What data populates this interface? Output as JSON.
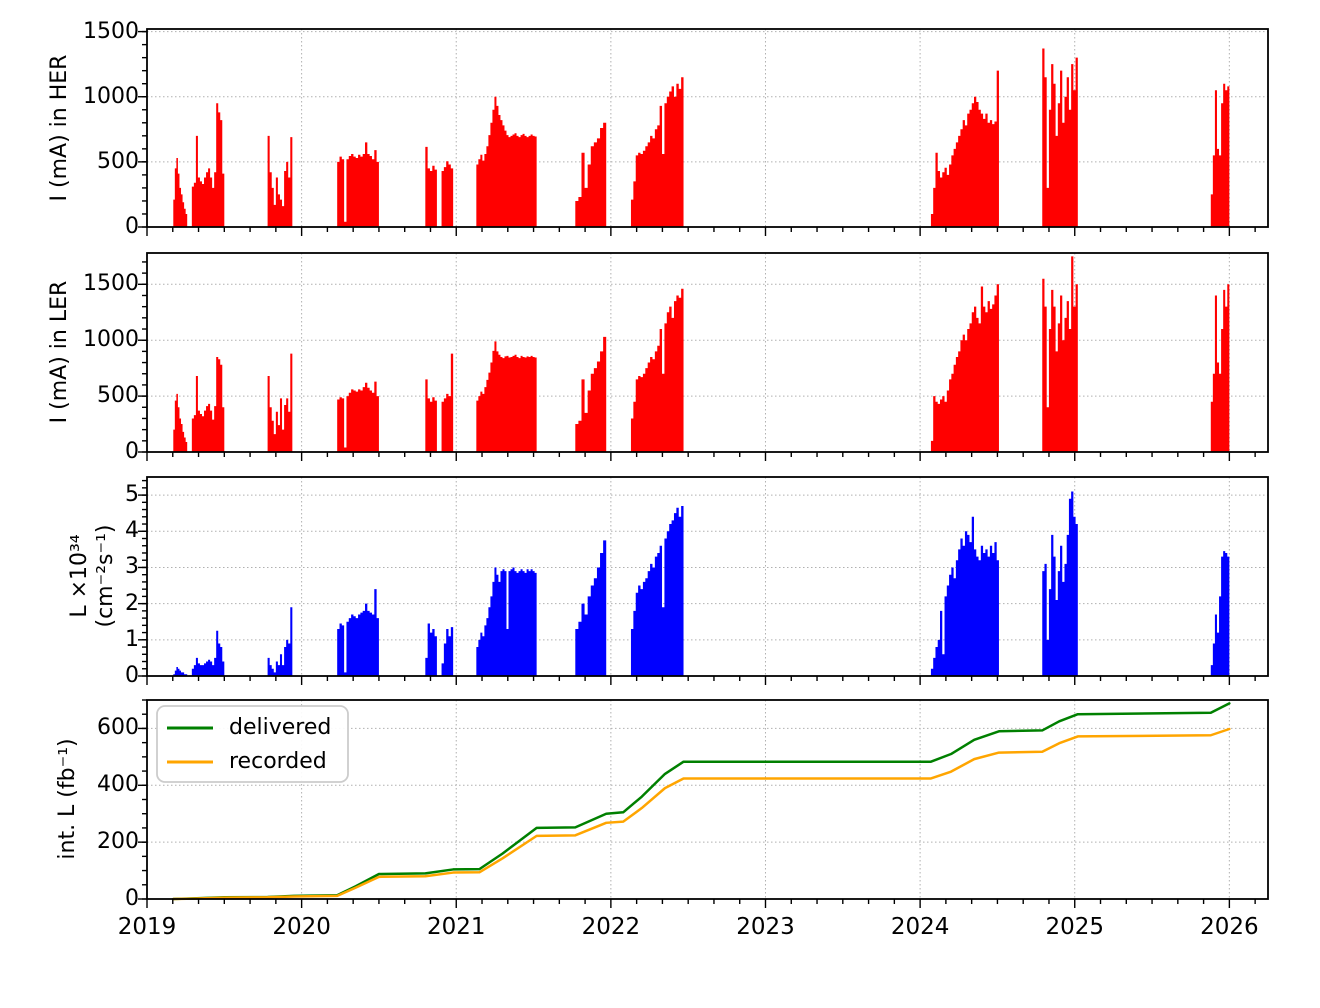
{
  "figure": {
    "background": "#ffffff",
    "grid_color": "#b0b0b0",
    "spine_color": "#000000",
    "x_axis": {
      "xmin": 2019,
      "xmax": 2026.25,
      "tick_years": [
        2019,
        2020,
        2021,
        2022,
        2023,
        2024,
        2025,
        2026
      ],
      "tick_labels": [
        "2019",
        "2020",
        "2021",
        "2022",
        "2023",
        "2024",
        "2025",
        "2026"
      ],
      "minor_step_years": 0.16667
    }
  },
  "chart_data": [
    {
      "type": "bar",
      "name": "her-current",
      "ylabel": "I (mA) in HER",
      "ylim": [
        0,
        1520
      ],
      "yticks": [
        0,
        500,
        1000,
        1500
      ],
      "yminor_step": 100,
      "color": "#ff0000",
      "clusters": [
        {
          "start": 2019.17,
          "end": 2019.26,
          "heights": [
            210,
            450,
            530,
            410,
            300,
            250,
            190,
            140,
            100
          ]
        },
        {
          "start": 2019.29,
          "end": 2019.5,
          "heights": [
            310,
            340,
            700,
            380,
            350,
            330,
            380,
            420,
            450,
            380,
            300,
            420,
            950,
            880,
            820,
            410
          ]
        },
        {
          "start": 2019.78,
          "end": 2019.94,
          "heights": [
            700,
            420,
            300,
            170,
            380,
            250,
            210,
            160,
            430,
            500,
            380,
            690
          ]
        },
        {
          "start": 2020.23,
          "end": 2020.5,
          "heights": [
            500,
            540,
            520,
            40,
            520,
            545,
            560,
            540,
            530,
            555,
            540,
            560,
            650,
            560,
            545,
            520,
            590,
            500
          ]
        },
        {
          "start": 2020.8,
          "end": 2020.98,
          "heights": [
            615,
            450,
            430,
            470,
            440,
            0,
            0,
            430,
            460,
            505,
            480,
            450
          ]
        },
        {
          "start": 2021.13,
          "end": 2021.52,
          "heights": [
            480,
            520,
            555,
            510,
            560,
            620,
            705,
            800,
            900,
            1000,
            930,
            860,
            820,
            780,
            740,
            705,
            690,
            700,
            710,
            720,
            700,
            690,
            705,
            715,
            700,
            690,
            700,
            710,
            700,
            695
          ]
        },
        {
          "start": 2021.77,
          "end": 2021.97,
          "heights": [
            200,
            230,
            570,
            300,
            480,
            620,
            650,
            680,
            760,
            800
          ]
        },
        {
          "start": 2022.13,
          "end": 2022.47,
          "heights": [
            210,
            350,
            550,
            570,
            560,
            585,
            620,
            650,
            700,
            680,
            750,
            780,
            930,
            560,
            950,
            1000,
            1040,
            1080,
            1000,
            1100,
            1060,
            1150
          ]
        },
        {
          "start": 2024.07,
          "end": 2024.51,
          "heights": [
            100,
            300,
            570,
            430,
            380,
            420,
            455,
            400,
            480,
            550,
            600,
            650,
            700,
            750,
            820,
            780,
            870,
            900,
            950,
            1000,
            960,
            900,
            870,
            830,
            870,
            800,
            820,
            790,
            810,
            1200
          ]
        },
        {
          "start": 2024.79,
          "end": 2025.02,
          "heights": [
            1370,
            1150,
            300,
            900,
            1250,
            1100,
            700,
            950,
            1200,
            800,
            1000,
            1150,
            900,
            1250,
            1050,
            1300
          ]
        },
        {
          "start": 2025.88,
          "end": 2026.0,
          "heights": [
            250,
            550,
            1050,
            600,
            550,
            950,
            1100,
            1050,
            1080
          ]
        }
      ]
    },
    {
      "type": "bar",
      "name": "ler-current",
      "ylabel": "I (mA) in LER",
      "ylim": [
        0,
        1780
      ],
      "yticks": [
        0,
        500,
        1000,
        1500
      ],
      "yminor_step": 100,
      "color": "#ff0000",
      "clusters": [
        {
          "start": 2019.17,
          "end": 2019.26,
          "heights": [
            200,
            460,
            520,
            400,
            300,
            250,
            180,
            130,
            90
          ]
        },
        {
          "start": 2019.29,
          "end": 2019.5,
          "heights": [
            300,
            330,
            680,
            370,
            340,
            320,
            370,
            410,
            430,
            370,
            290,
            410,
            850,
            830,
            780,
            400
          ]
        },
        {
          "start": 2019.78,
          "end": 2019.94,
          "heights": [
            680,
            400,
            280,
            160,
            360,
            240,
            480,
            200,
            420,
            480,
            360,
            880
          ]
        },
        {
          "start": 2020.23,
          "end": 2020.5,
          "heights": [
            470,
            490,
            480,
            40,
            500,
            530,
            560,
            550,
            540,
            560,
            550,
            580,
            620,
            575,
            550,
            530,
            630,
            500
          ]
        },
        {
          "start": 2020.8,
          "end": 2020.98,
          "heights": [
            650,
            480,
            450,
            490,
            460,
            0,
            0,
            450,
            480,
            520,
            500,
            880
          ]
        },
        {
          "start": 2021.13,
          "end": 2021.52,
          "heights": [
            460,
            500,
            540,
            520,
            580,
            645,
            710,
            800,
            905,
            990,
            900,
            870,
            850,
            840,
            855,
            860,
            845,
            850,
            860,
            870,
            850,
            840,
            860,
            850,
            845,
            855,
            850,
            860,
            850,
            845
          ]
        },
        {
          "start": 2021.77,
          "end": 2021.97,
          "heights": [
            250,
            280,
            650,
            350,
            550,
            700,
            750,
            810,
            900,
            1030
          ]
        },
        {
          "start": 2022.13,
          "end": 2022.47,
          "heights": [
            300,
            450,
            650,
            680,
            670,
            700,
            750,
            800,
            850,
            830,
            900,
            950,
            1100,
            700,
            1150,
            1250,
            1300,
            1200,
            1350,
            1400,
            1380,
            1460
          ]
        },
        {
          "start": 2024.07,
          "end": 2024.51,
          "heights": [
            100,
            500,
            450,
            430,
            470,
            500,
            450,
            550,
            650,
            700,
            780,
            850,
            900,
            1000,
            1050,
            1000,
            1100,
            1150,
            1250,
            1300,
            1200,
            1150,
            1480,
            1300,
            1250,
            1350,
            1280,
            1320,
            1400,
            1500
          ]
        },
        {
          "start": 2024.79,
          "end": 2025.02,
          "heights": [
            1550,
            1300,
            400,
            1100,
            1450,
            1300,
            900,
            1150,
            1400,
            1000,
            1200,
            1350,
            1100,
            1750,
            1300,
            1500
          ]
        },
        {
          "start": 2025.88,
          "end": 2026.0,
          "heights": [
            450,
            700,
            1400,
            800,
            700,
            1100,
            1450,
            1300,
            1500
          ]
        }
      ]
    },
    {
      "type": "bar",
      "name": "luminosity",
      "ylabel_line1": "L ×10³⁴",
      "ylabel_line2": "(cm⁻²s⁻¹)",
      "ylim": [
        0,
        5.5
      ],
      "yticks": [
        0,
        1,
        2,
        3,
        4,
        5
      ],
      "yminor_step": 0.2,
      "color": "#0000ff",
      "clusters": [
        {
          "start": 2019.17,
          "end": 2019.26,
          "heights": [
            0.05,
            0.15,
            0.25,
            0.2,
            0.15,
            0.1,
            0.1,
            0.05,
            0.05
          ]
        },
        {
          "start": 2019.29,
          "end": 2019.5,
          "heights": [
            0.2,
            0.3,
            0.5,
            0.35,
            0.3,
            0.3,
            0.35,
            0.4,
            0.45,
            0.4,
            0.3,
            0.5,
            1.25,
            0.9,
            0.8,
            0.4
          ]
        },
        {
          "start": 2019.78,
          "end": 2019.94,
          "heights": [
            0.5,
            0.3,
            0.2,
            0.1,
            0.4,
            0.3,
            0.6,
            0.3,
            0.8,
            1.0,
            0.9,
            1.9
          ]
        },
        {
          "start": 2020.23,
          "end": 2020.5,
          "heights": [
            1.3,
            1.45,
            1.4,
            0.1,
            1.5,
            1.6,
            1.7,
            1.65,
            1.6,
            1.7,
            1.75,
            1.8,
            2.0,
            1.8,
            1.75,
            1.7,
            2.4,
            1.6
          ]
        },
        {
          "start": 2020.8,
          "end": 2020.98,
          "heights": [
            0.5,
            1.45,
            1.2,
            1.3,
            1.1,
            0,
            0,
            0.35,
            0.9,
            1.3,
            1.1,
            1.35
          ]
        },
        {
          "start": 2021.13,
          "end": 2021.52,
          "heights": [
            0.8,
            1.0,
            1.2,
            1.1,
            1.4,
            1.6,
            1.9,
            2.2,
            2.6,
            3.0,
            2.8,
            2.6,
            2.9,
            2.95,
            2.9,
            1.3,
            2.9,
            2.95,
            3.0,
            2.9,
            2.85,
            2.9,
            2.95,
            2.9,
            2.85,
            2.95,
            2.9,
            2.95,
            2.9,
            2.85
          ]
        },
        {
          "start": 2021.77,
          "end": 2021.97,
          "heights": [
            1.3,
            1.5,
            2.0,
            1.7,
            2.2,
            2.5,
            2.7,
            3.0,
            3.4,
            3.75
          ]
        },
        {
          "start": 2022.13,
          "end": 2022.47,
          "heights": [
            1.3,
            1.8,
            2.3,
            2.5,
            2.4,
            2.6,
            2.7,
            2.9,
            3.1,
            3.0,
            3.3,
            3.4,
            3.6,
            1.9,
            3.8,
            4.0,
            4.2,
            4.3,
            4.5,
            4.65,
            4.4,
            4.7
          ]
        },
        {
          "start": 2024.07,
          "end": 2024.51,
          "heights": [
            0.2,
            0.5,
            0.8,
            1.0,
            1.8,
            0.6,
            2.2,
            2.5,
            2.8,
            3.0,
            2.7,
            3.2,
            3.5,
            3.8,
            3.6,
            4.0,
            3.9,
            3.7,
            4.4,
            3.5,
            3.3,
            3.2,
            3.6,
            3.4,
            3.5,
            3.3,
            3.6,
            3.4,
            3.7,
            3.2
          ]
        },
        {
          "start": 2024.79,
          "end": 2025.02,
          "heights": [
            2.9,
            3.1,
            1.0,
            2.4,
            3.9,
            3.3,
            2.1,
            2.9,
            3.6,
            2.6,
            3.1,
            3.9,
            4.9,
            5.1,
            4.4,
            4.2
          ]
        },
        {
          "start": 2025.88,
          "end": 2026.0,
          "heights": [
            0.3,
            0.9,
            1.7,
            1.2,
            2.2,
            3.3,
            3.45,
            3.4,
            3.3
          ]
        }
      ]
    },
    {
      "type": "line",
      "name": "integrated-luminosity",
      "ylabel": "int. L (fb⁻¹)",
      "ylim": [
        0,
        700
      ],
      "yticks": [
        0,
        200,
        400,
        600
      ],
      "yminor_step": 50,
      "legend": [
        "delivered",
        "recorded"
      ],
      "series": [
        {
          "name": "delivered",
          "color": "#008000",
          "points": [
            [
              2019.17,
              0
            ],
            [
              2019.3,
              2
            ],
            [
              2019.5,
              6
            ],
            [
              2019.78,
              7
            ],
            [
              2019.95,
              11
            ],
            [
              2020.23,
              13
            ],
            [
              2020.35,
              45
            ],
            [
              2020.5,
              88
            ],
            [
              2020.8,
              90
            ],
            [
              2020.98,
              104
            ],
            [
              2021.15,
              105
            ],
            [
              2021.3,
              160
            ],
            [
              2021.52,
              250
            ],
            [
              2021.77,
              252
            ],
            [
              2021.97,
              300
            ],
            [
              2022.08,
              305
            ],
            [
              2022.2,
              360
            ],
            [
              2022.35,
              440
            ],
            [
              2022.47,
              483
            ],
            [
              2024.07,
              483
            ],
            [
              2024.2,
              510
            ],
            [
              2024.35,
              560
            ],
            [
              2024.51,
              590
            ],
            [
              2024.79,
              593
            ],
            [
              2024.9,
              625
            ],
            [
              2025.02,
              650
            ],
            [
              2025.88,
              655
            ],
            [
              2026.0,
              688
            ]
          ]
        },
        {
          "name": "recorded",
          "color": "#ffa500",
          "points": [
            [
              2019.17,
              0
            ],
            [
              2019.3,
              1.5
            ],
            [
              2019.5,
              5
            ],
            [
              2019.78,
              6
            ],
            [
              2019.95,
              9
            ],
            [
              2020.23,
              11
            ],
            [
              2020.35,
              40
            ],
            [
              2020.5,
              78
            ],
            [
              2020.8,
              80
            ],
            [
              2020.98,
              93
            ],
            [
              2021.15,
              94
            ],
            [
              2021.3,
              143
            ],
            [
              2021.52,
              222
            ],
            [
              2021.77,
              224
            ],
            [
              2021.97,
              268
            ],
            [
              2022.08,
              272
            ],
            [
              2022.2,
              320
            ],
            [
              2022.35,
              390
            ],
            [
              2022.47,
              424
            ],
            [
              2024.07,
              424
            ],
            [
              2024.2,
              448
            ],
            [
              2024.35,
              492
            ],
            [
              2024.51,
              515
            ],
            [
              2024.79,
              518
            ],
            [
              2024.9,
              548
            ],
            [
              2025.02,
              572
            ],
            [
              2025.88,
              576
            ],
            [
              2026.0,
              598
            ]
          ]
        }
      ]
    }
  ]
}
